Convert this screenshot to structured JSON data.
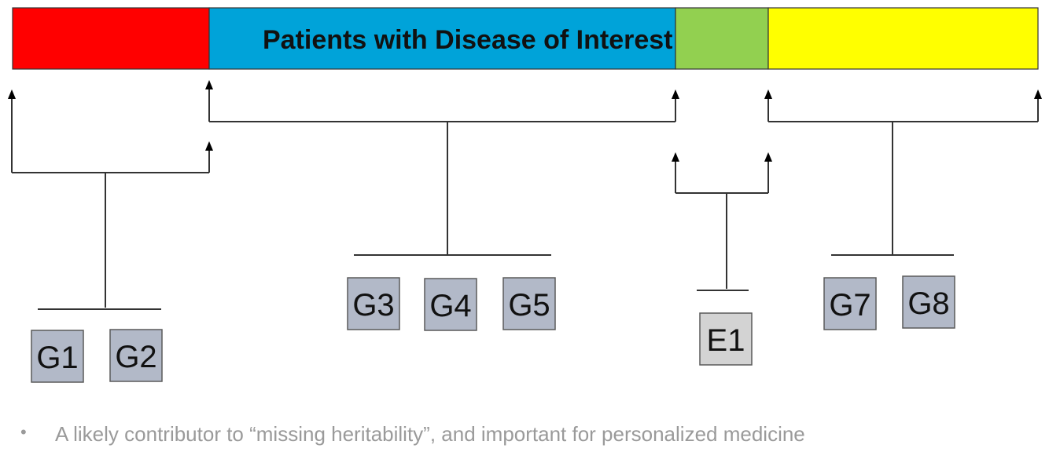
{
  "bar": {
    "title": "Patients with Disease of Interest",
    "segment_colors": [
      "#ff0000",
      "#00a3d9",
      "#92d050",
      "#ffff00"
    ]
  },
  "box_fill": {
    "genetic": "#b2b9c8",
    "environment": "#d3d3d3"
  },
  "groups": [
    {
      "name": "group-1",
      "factors": [
        {
          "label": "G1",
          "kind": "genetic"
        },
        {
          "label": "G2",
          "kind": "genetic"
        }
      ]
    },
    {
      "name": "group-2",
      "factors": [
        {
          "label": "G3",
          "kind": "genetic"
        },
        {
          "label": "G4",
          "kind": "genetic"
        },
        {
          "label": "G5",
          "kind": "genetic"
        }
      ]
    },
    {
      "name": "group-3",
      "factors": [
        {
          "label": "E1",
          "kind": "environment"
        }
      ]
    },
    {
      "name": "group-4",
      "factors": [
        {
          "label": "G7",
          "kind": "genetic"
        },
        {
          "label": "G8",
          "kind": "genetic"
        }
      ]
    }
  ],
  "bullet": {
    "symbol": "•",
    "text": "A likely contributor to “missing heritability”, and important for personalized medicine"
  }
}
